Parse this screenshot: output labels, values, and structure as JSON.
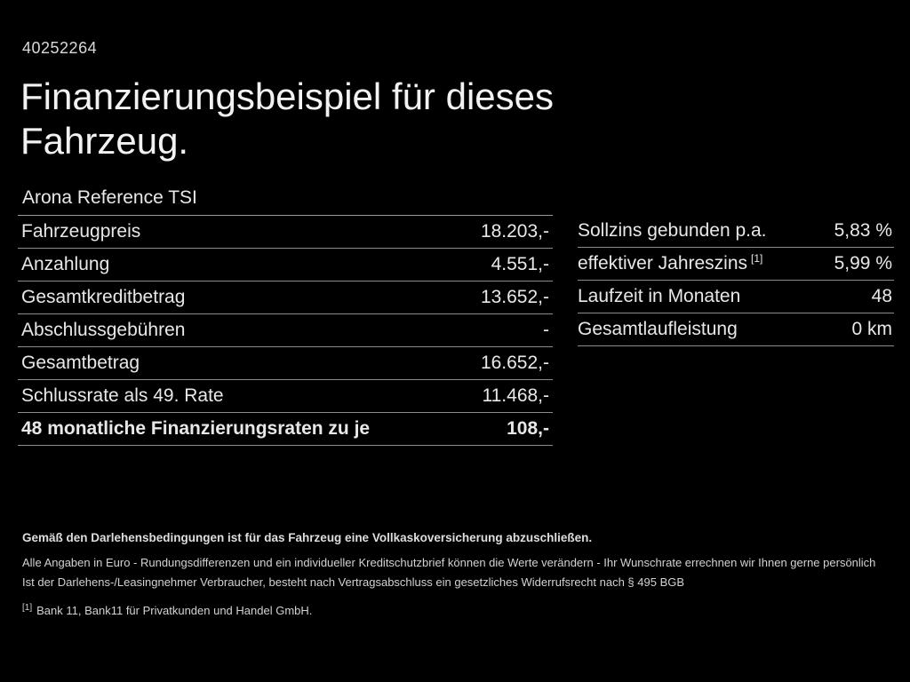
{
  "page": {
    "id_number": "40252264",
    "title": "Finanzierungsbeispiel für dieses Fahrzeug.",
    "vehicle_model": "Arona Reference TSI"
  },
  "finance_table": {
    "rows": [
      {
        "label": "Fahrzeugpreis",
        "value": "18.203,-"
      },
      {
        "label": "Anzahlung",
        "value": "4.551,-"
      },
      {
        "label": "Gesamtkreditbetrag",
        "value": "13.652,-"
      },
      {
        "label": "Abschlussgebühren",
        "value": "-"
      },
      {
        "label": "Gesamtbetrag",
        "value": "16.652,-"
      },
      {
        "label": "Schlussrate als 49. Rate",
        "value": "11.468,-"
      },
      {
        "label": "48 monatliche Finanzierungsraten zu je",
        "value": "108,-"
      }
    ]
  },
  "conditions_table": {
    "rows": [
      {
        "label": "Sollzins gebunden p.a.",
        "value": "5,83 %"
      },
      {
        "label": "effektiver Jahreszins",
        "sup": "[1]",
        "value": "5,99 %"
      },
      {
        "label": "Laufzeit in Monaten",
        "value": "48"
      },
      {
        "label": "Gesamtlaufleistung",
        "value": "0 km"
      }
    ]
  },
  "footer": {
    "insurance_note": "Gemäß den Darlehensbedingungen ist für das Fahrzeug eine Vollkaskoversicherung abzuschließen.",
    "disclaimer_line1": "Alle Angaben in Euro - Rundungsdifferenzen und ein individueller Kreditschutzbrief können die Werte verändern - Ihr Wunschrate errechnen wir Ihnen gerne persönlich",
    "disclaimer_line2": "Ist der Darlehens-/Leasingnehmer Verbraucher, besteht nach Vertragsabschluss ein gesetzliches Widerrufsrecht nach § 495 BGB",
    "footnote_marker": "[1]",
    "footnote_text": "Bank 11, Bank11 für Privatkunden und Handel GmbH."
  },
  "colors": {
    "background": "#000000",
    "text": "#e8e8e8",
    "divider": "#8c8c8c"
  }
}
